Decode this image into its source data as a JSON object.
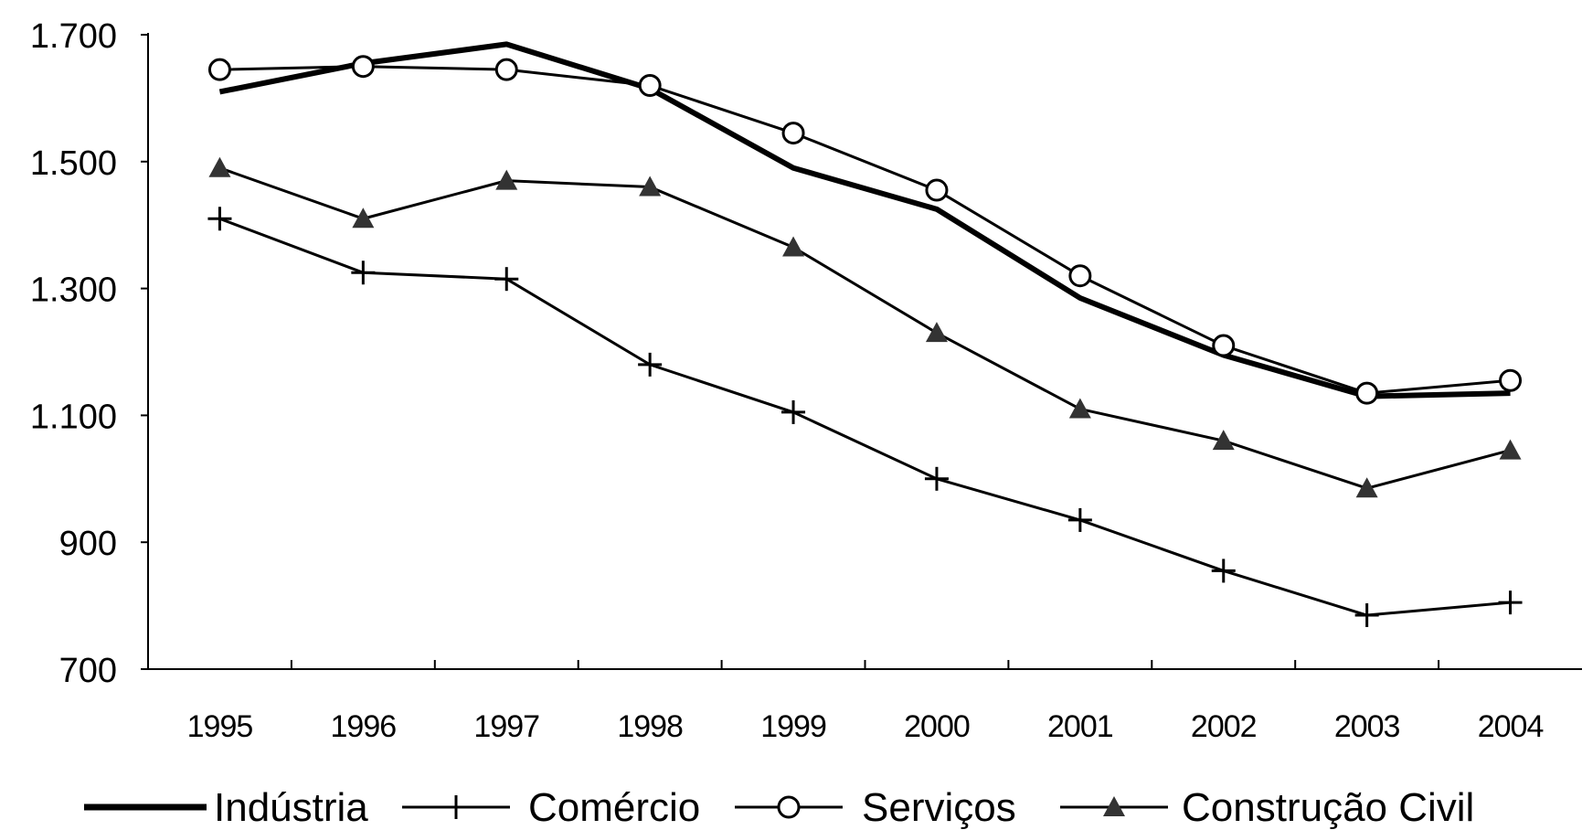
{
  "chart_data": {
    "type": "line",
    "title": "",
    "xlabel": "",
    "ylabel": "",
    "x": [
      "1995",
      "1996",
      "1997",
      "1998",
      "1999",
      "2000",
      "2001",
      "2002",
      "2003",
      "2004"
    ],
    "ylim": [
      700,
      1700
    ],
    "yticks": [
      700,
      900,
      1100,
      1300,
      1500,
      1700
    ],
    "ytick_labels": [
      "700",
      "900",
      "1.100",
      "1.300",
      "1.500",
      "1.700"
    ],
    "grid": false,
    "legend_position": "bottom",
    "series": [
      {
        "name": "Indústria",
        "marker": "none",
        "line": "thick",
        "values": [
          1610,
          1655,
          1685,
          1615,
          1490,
          1425,
          1285,
          1195,
          1130,
          1135
        ]
      },
      {
        "name": "Comércio",
        "marker": "plus",
        "line": "thin",
        "values": [
          1410,
          1325,
          1315,
          1180,
          1105,
          1000,
          935,
          855,
          785,
          805
        ]
      },
      {
        "name": "Serviços",
        "marker": "circle",
        "line": "thin",
        "values": [
          1645,
          1650,
          1645,
          1620,
          1545,
          1455,
          1320,
          1210,
          1135,
          1155
        ]
      },
      {
        "name": "Construção Civil",
        "marker": "triangle",
        "line": "thin",
        "values": [
          1490,
          1410,
          1470,
          1460,
          1365,
          1230,
          1110,
          1060,
          985,
          1045
        ]
      }
    ]
  }
}
